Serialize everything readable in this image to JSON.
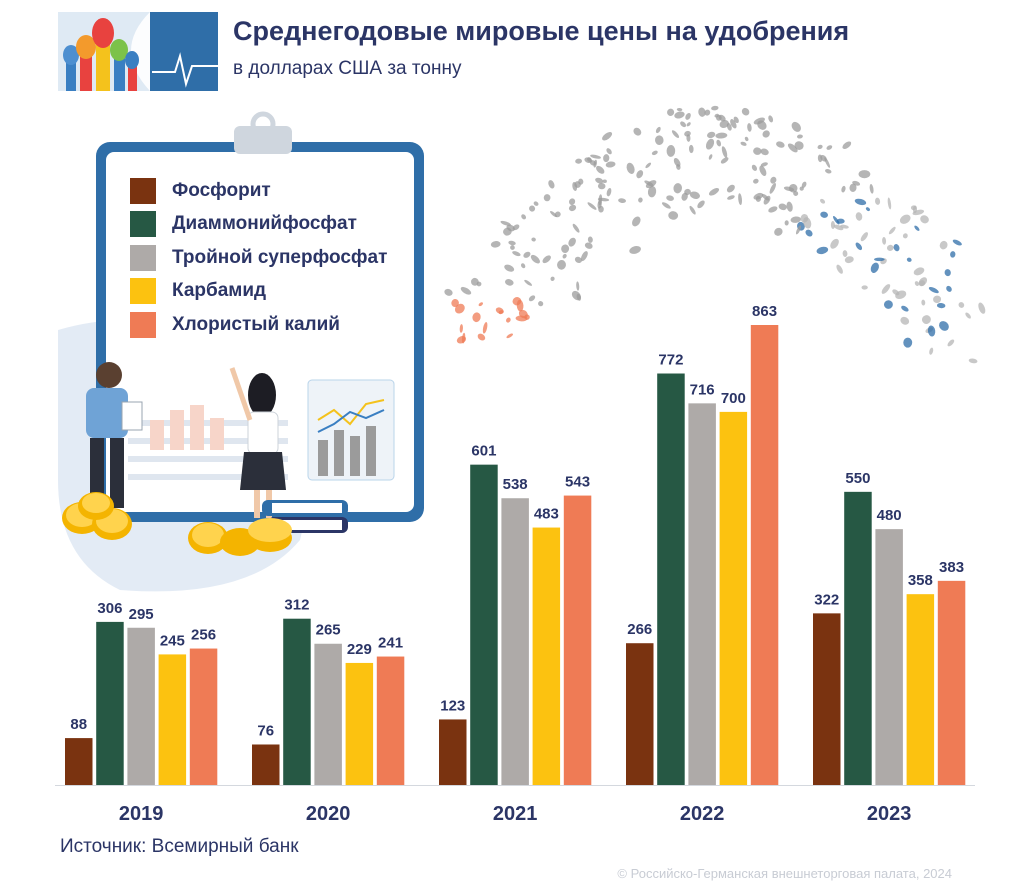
{
  "header": {
    "title": "Среднегодовые мировые цены на удобрения",
    "subtitle": "в долларах США за тонну"
  },
  "footer": {
    "source": "Источник: Всемирный банк",
    "copyright": "© Российско-Германская внешнеторговая палата, 2024"
  },
  "colors": {
    "phosphorite": "#7a3310",
    "dap": "#265844",
    "tsp": "#aeaaa8",
    "urea": "#fcc210",
    "potash": "#ef7b55",
    "text": "#2b3566",
    "logo_bg": "#2f6ea8"
  },
  "icons": [
    "kremlin-logo-icon",
    "clipboard-illustration-icon",
    "people-illustration-icon",
    "coins-icon",
    "books-icon",
    "fertilizer-pellets-icon"
  ],
  "chart_data": {
    "type": "bar",
    "categories": [
      "2019",
      "2020",
      "2021",
      "2022",
      "2023"
    ],
    "series": [
      {
        "name": "Фосфорит",
        "color": "#7a3310",
        "values": [
          88,
          76,
          123,
          266,
          322
        ]
      },
      {
        "name": "Диаммонийфосфат",
        "color": "#265844",
        "values": [
          306,
          312,
          601,
          772,
          550
        ]
      },
      {
        "name": "Тройной суперфосфат",
        "color": "#aeaaa8",
        "values": [
          295,
          265,
          538,
          716,
          480
        ]
      },
      {
        "name": "Карбамид",
        "color": "#fcc210",
        "values": [
          245,
          229,
          483,
          700,
          358
        ]
      },
      {
        "name": "Хлористый калий",
        "color": "#ef7b55",
        "values": [
          256,
          241,
          543,
          863,
          383
        ]
      }
    ],
    "title": "Среднегодовые мировые цены на удобрения",
    "ylabel": "в долларах США за тонну",
    "ylim": [
      0,
      863
    ],
    "grid": false,
    "legend": "top-left",
    "data_labels": true
  }
}
